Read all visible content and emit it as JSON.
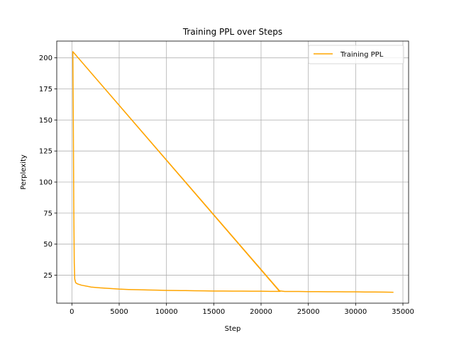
{
  "chart_data": {
    "type": "line",
    "title": "Training PPL over Steps",
    "xlabel": "Step",
    "ylabel": "Perplexity",
    "xlim": [
      -1600,
      35600
    ],
    "ylim": [
      2.5,
      213.5
    ],
    "xticks": [
      0,
      5000,
      10000,
      15000,
      20000,
      25000,
      30000,
      35000
    ],
    "xtick_labels": [
      "0",
      "5000",
      "10000",
      "15000",
      "20000",
      "25000",
      "30000",
      "35000"
    ],
    "yticks": [
      25,
      50,
      75,
      100,
      125,
      150,
      175,
      200
    ],
    "ytick_labels": [
      "25",
      "50",
      "75",
      "100",
      "125",
      "150",
      "175",
      "200"
    ],
    "grid": true,
    "legend": {
      "position": "top-right"
    },
    "series": [
      {
        "name": "Training PPL",
        "color": "#FFA500",
        "points": [
          [
            100,
            205
          ],
          [
            150,
            150
          ],
          [
            200,
            80
          ],
          [
            250,
            35
          ],
          [
            300,
            22
          ],
          [
            400,
            19
          ],
          [
            600,
            18
          ],
          [
            1000,
            17
          ],
          [
            2000,
            15.5
          ],
          [
            3000,
            14.8
          ],
          [
            4000,
            14.3
          ],
          [
            5000,
            13.8
          ],
          [
            6000,
            13.5
          ],
          [
            7000,
            13.3
          ],
          [
            8000,
            13.1
          ],
          [
            9000,
            13.0
          ],
          [
            10000,
            12.8
          ],
          [
            11000,
            12.7
          ],
          [
            12000,
            12.6
          ],
          [
            13000,
            12.5
          ],
          [
            14000,
            12.4
          ],
          [
            15000,
            12.3
          ],
          [
            16000,
            12.3
          ],
          [
            17000,
            12.2
          ],
          [
            18000,
            12.2
          ],
          [
            19000,
            12.1
          ],
          [
            20000,
            12.1
          ],
          [
            21000,
            12.0
          ],
          [
            22000,
            12.0
          ],
          [
            100,
            205
          ],
          [
            21900,
            12.5
          ],
          [
            22500,
            11.9
          ],
          [
            23000,
            11.9
          ],
          [
            24000,
            11.9
          ],
          [
            25000,
            11.8
          ],
          [
            26000,
            11.8
          ],
          [
            27000,
            11.7
          ],
          [
            28000,
            11.7
          ],
          [
            29000,
            11.6
          ],
          [
            30000,
            11.6
          ],
          [
            31000,
            11.5
          ],
          [
            32000,
            11.5
          ],
          [
            33000,
            11.4
          ],
          [
            34000,
            11.3
          ]
        ]
      }
    ]
  }
}
